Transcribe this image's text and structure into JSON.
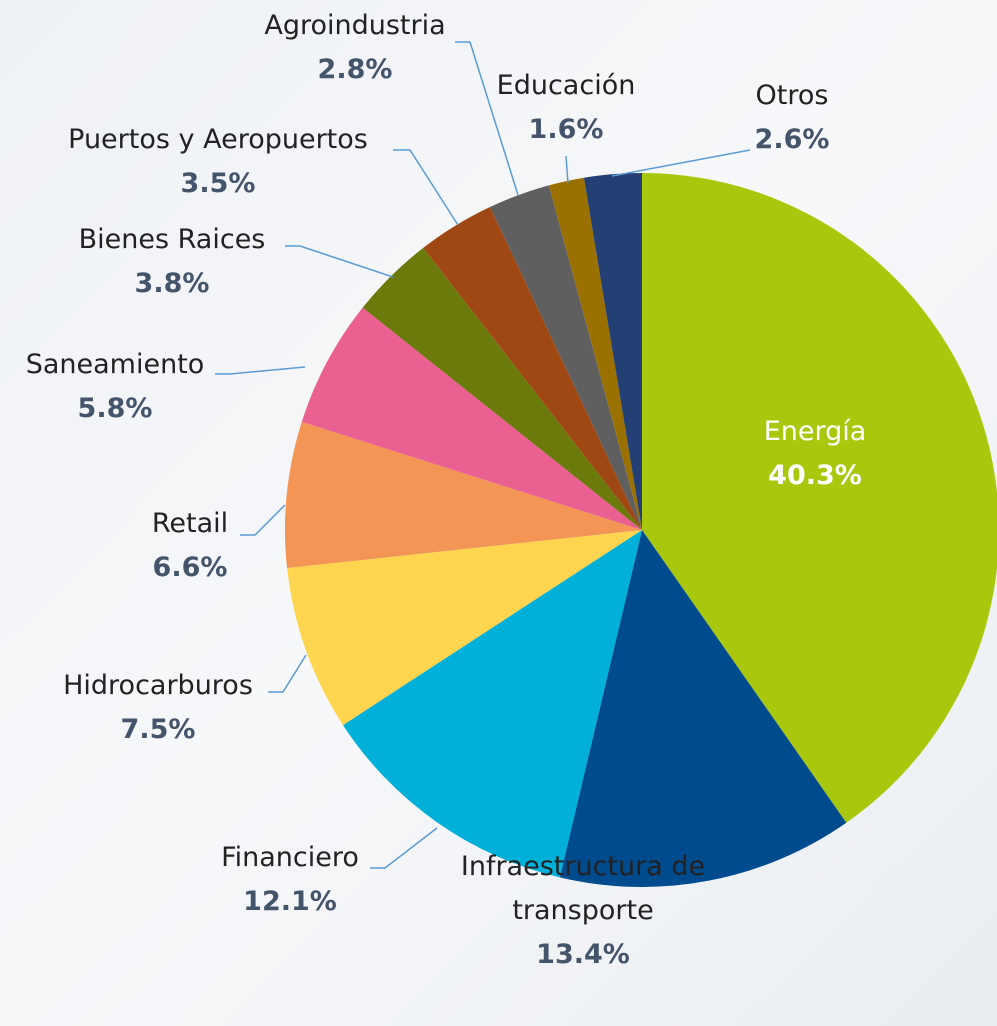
{
  "chart_data": {
    "type": "pie",
    "categories": [
      "Energía",
      "Infraestructura de transporte",
      "Financiero",
      "Hidrocarburos",
      "Retail",
      "Saneamiento",
      "Bienes Raices",
      "Puertos y Aeropuertos",
      "Agroindustria",
      "Educación",
      "Otros"
    ],
    "values": [
      40.3,
      13.4,
      12.1,
      7.5,
      6.6,
      5.8,
      3.8,
      3.5,
      2.8,
      1.6,
      2.6
    ],
    "value_labels": [
      "40.3%",
      "13.4%",
      "12.1%",
      "7.5%",
      "6.6%",
      "5.8%",
      "3.8%",
      "3.5%",
      "2.8%",
      "1.6%",
      "2.6%"
    ],
    "colors": [
      "#a9c80d",
      "#004b8d",
      "#00b0d8",
      "#ffd54f",
      "#f39655",
      "#ea6091",
      "#6b7a0b",
      "#a04814",
      "#5f5f5f",
      "#9a7100",
      "#243f73"
    ]
  }
}
